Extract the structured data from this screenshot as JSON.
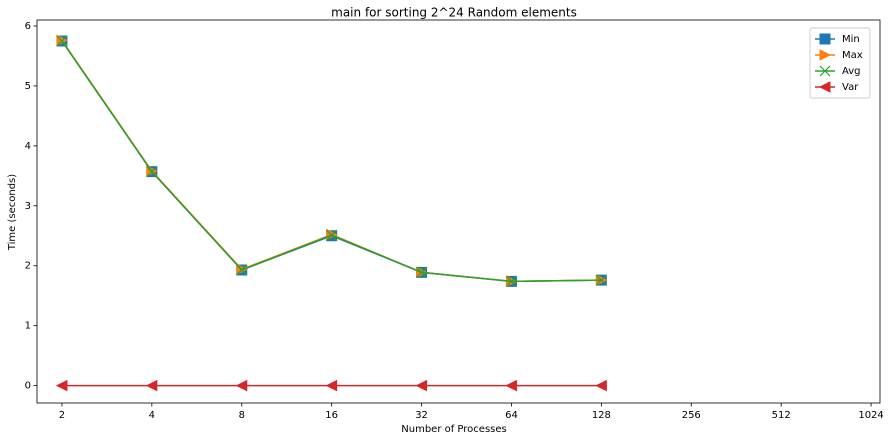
{
  "chart_data": {
    "type": "line",
    "title": "main for sorting 2^24 Random elements",
    "x_label": "Number of Processes",
    "y_label": "Time (seconds)",
    "x": [
      2,
      4,
      8,
      16,
      32,
      64,
      128
    ],
    "series": [
      {
        "name": "Min",
        "color": "#1f77b4",
        "marker": "s",
        "values": [
          5.75,
          3.57,
          1.93,
          2.5,
          1.89,
          1.74,
          1.76
        ]
      },
      {
        "name": "Max",
        "color": "#ff7f0e",
        "marker": ">",
        "values": [
          5.76,
          3.58,
          1.94,
          2.52,
          1.89,
          1.74,
          1.76
        ]
      },
      {
        "name": "Avg",
        "color": "#2ca02c",
        "marker": "x",
        "values": [
          5.75,
          3.57,
          1.93,
          2.51,
          1.89,
          1.74,
          1.76
        ]
      },
      {
        "name": "Var",
        "color": "#d62728",
        "marker": "<",
        "values": [
          0,
          0,
          0,
          0,
          0,
          0,
          0
        ]
      }
    ],
    "xscale": "log2",
    "xlim": [
      1.65,
      1097
    ],
    "xticks": [
      2,
      4,
      8,
      16,
      32,
      64,
      128,
      256,
      512,
      1024
    ],
    "ylim": [
      -0.29,
      6.1
    ],
    "yticks": [
      0,
      1,
      2,
      3,
      4,
      5,
      6
    ],
    "legend": "upper right"
  }
}
